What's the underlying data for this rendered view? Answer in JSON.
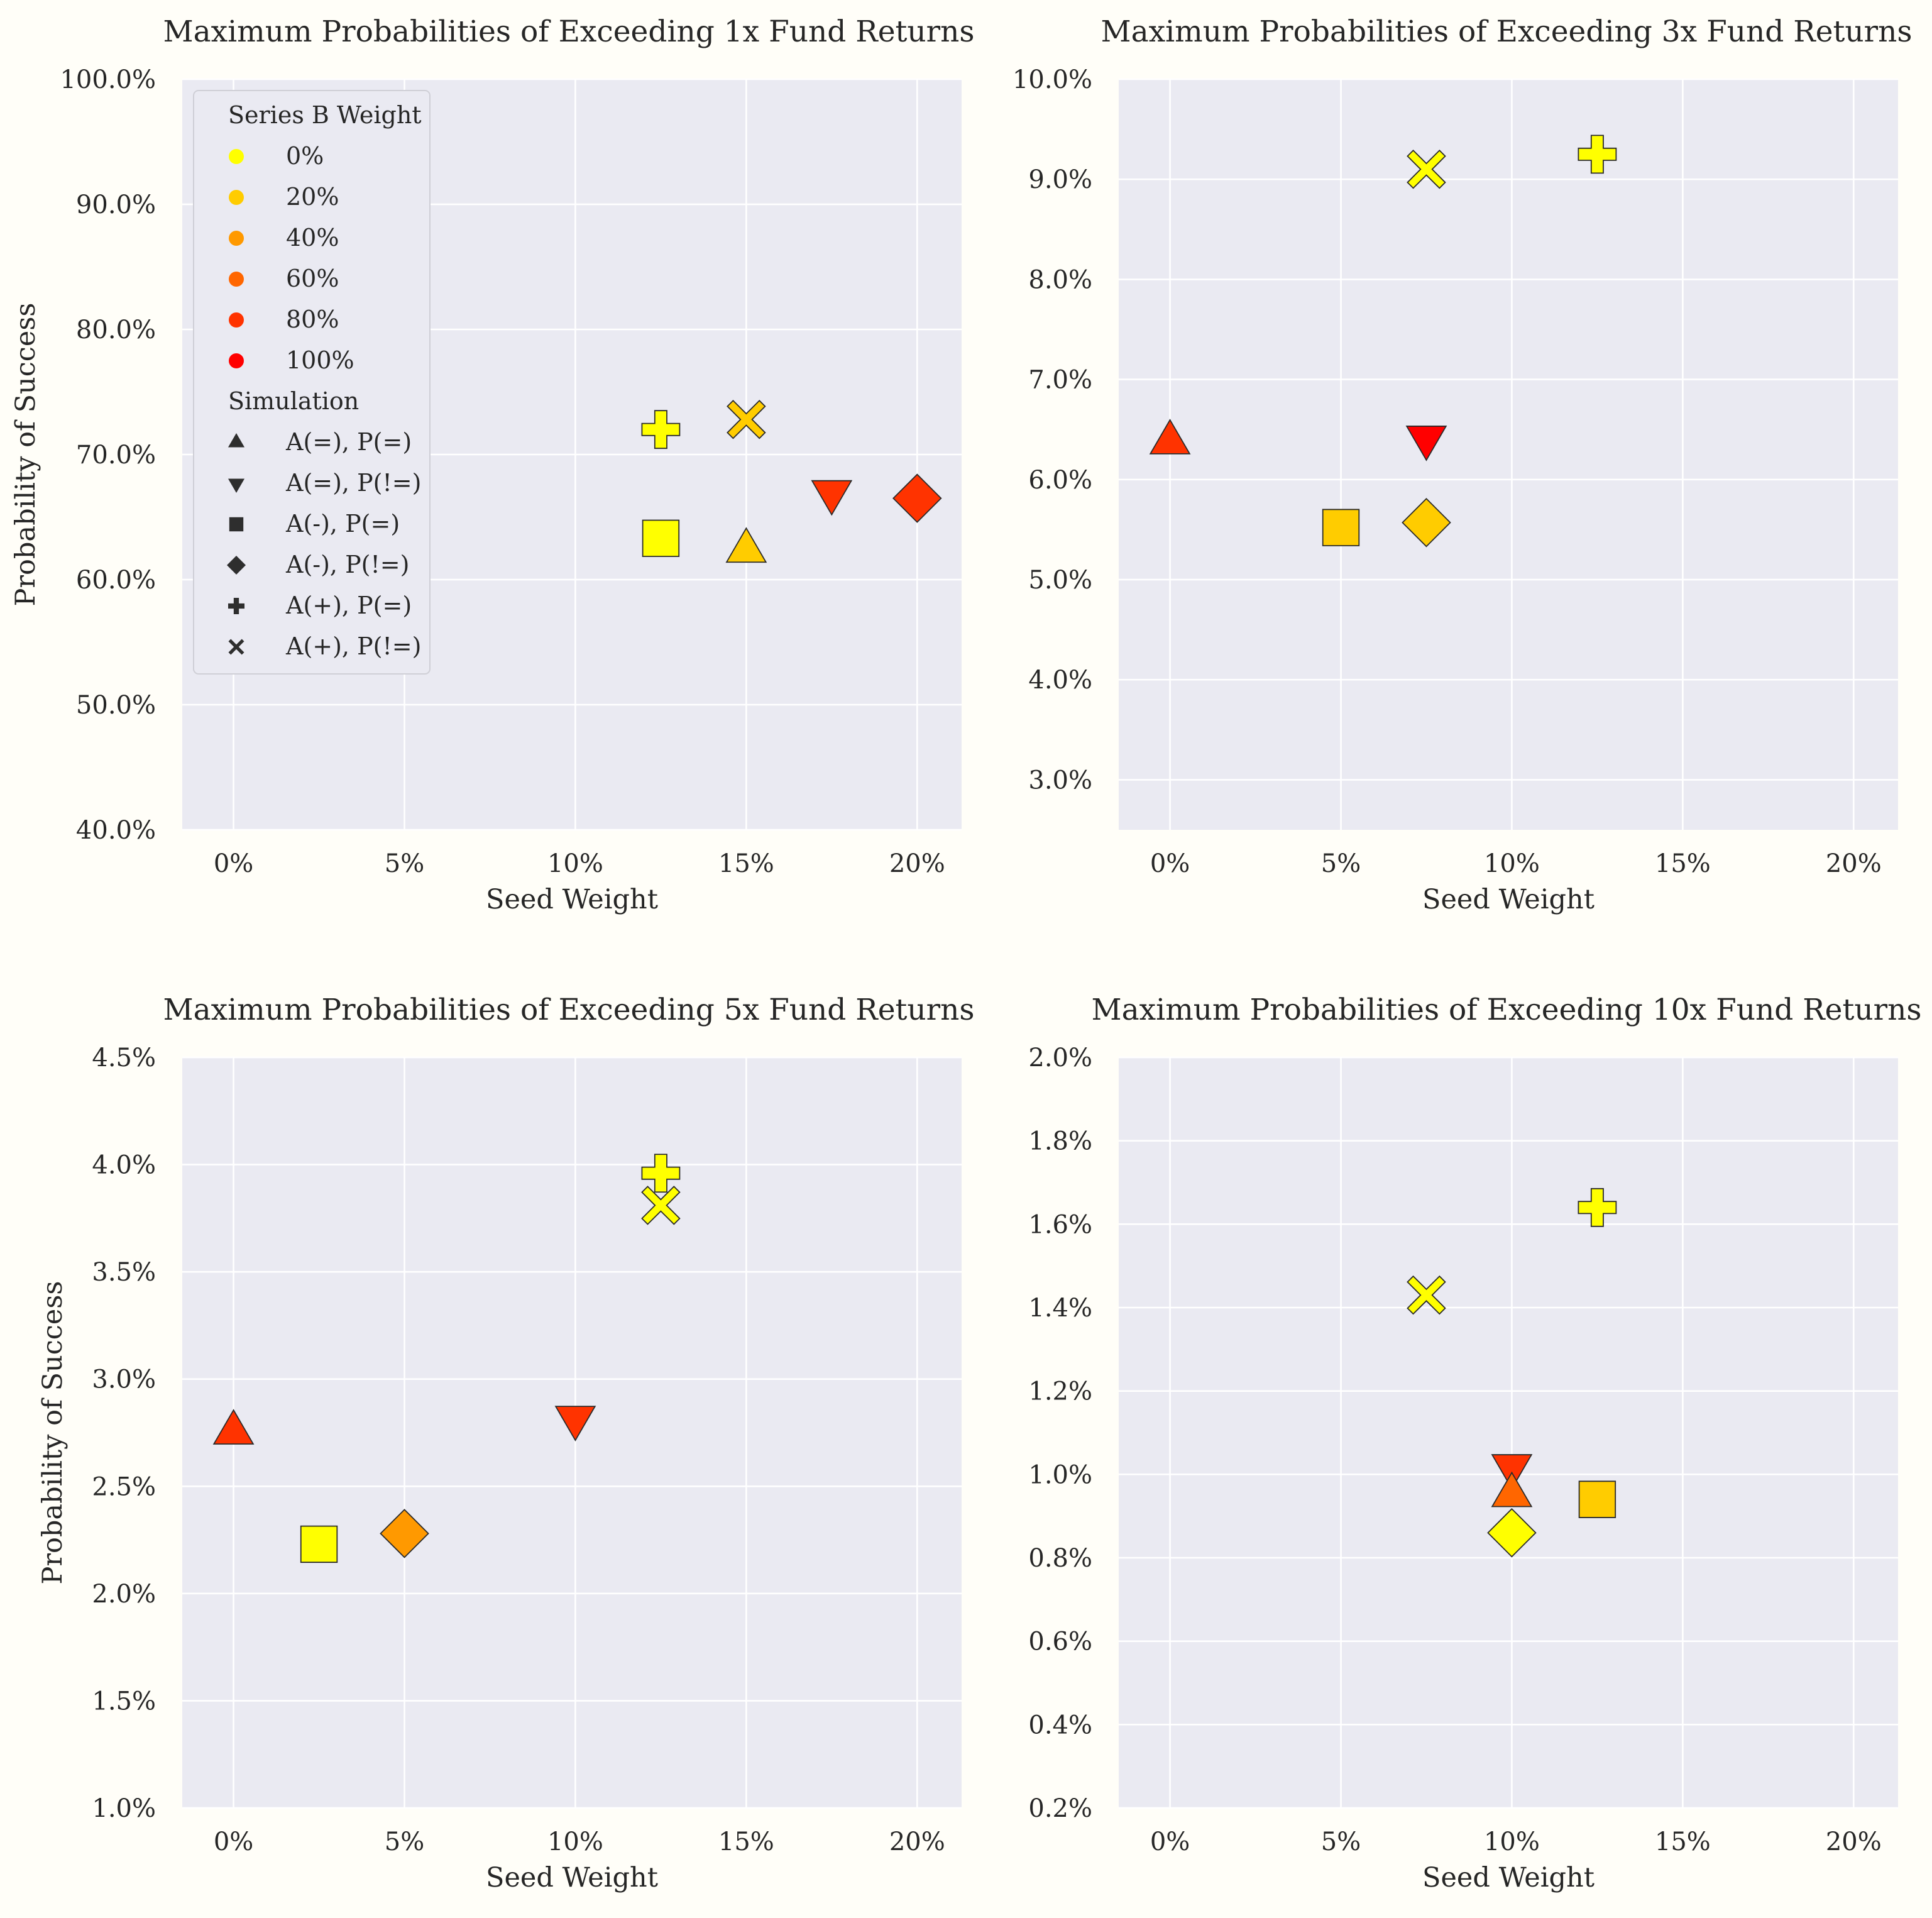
{
  "legend": {
    "weight_title": "Series B Weight",
    "weights": [
      {
        "label": "0%",
        "color": "#ffff00"
      },
      {
        "label": "20%",
        "color": "#ffcc00"
      },
      {
        "label": "40%",
        "color": "#ff9900"
      },
      {
        "label": "60%",
        "color": "#ff6600"
      },
      {
        "label": "80%",
        "color": "#ff3300"
      },
      {
        "label": "100%",
        "color": "#ff0000"
      }
    ],
    "sim_title": "Simulation",
    "sims": [
      {
        "label": "A(=), P(=)",
        "marker": "triangle-up"
      },
      {
        "label": "A(=), P(!=)",
        "marker": "triangle-down"
      },
      {
        "label": "A(-), P(=)",
        "marker": "square"
      },
      {
        "label": "A(-), P(!=)",
        "marker": "diamond"
      },
      {
        "label": "A(+), P(=)",
        "marker": "plus"
      },
      {
        "label": "A(+), P(!=)",
        "marker": "x"
      }
    ]
  },
  "chart_data": [
    {
      "type": "scatter",
      "title": "Maximum Probabilities of Exceeding 1x Fund Returns",
      "xlabel": "Seed Weight",
      "ylabel": "Probability of Success",
      "xlim": [
        -1.5,
        21.3
      ],
      "ylim": [
        40,
        100
      ],
      "xticks": [
        0,
        5,
        10,
        15,
        20
      ],
      "xtick_labels": [
        "0%",
        "5%",
        "10%",
        "15%",
        "20%"
      ],
      "yticks": [
        40,
        50,
        60,
        70,
        80,
        90,
        100
      ],
      "ytick_labels": [
        "40.0%",
        "50.0%",
        "60.0%",
        "70.0%",
        "80.0%",
        "90.0%",
        "100.0%"
      ],
      "grid": true,
      "legend_position": "upper-left",
      "points": [
        {
          "sim": "A(+), P(=)",
          "seed_weight": 12.5,
          "probability": 72.0,
          "series_b_weight": "0%"
        },
        {
          "sim": "A(+), P(!=)",
          "seed_weight": 15,
          "probability": 72.8,
          "series_b_weight": "20%"
        },
        {
          "sim": "A(-), P(=)",
          "seed_weight": 12.5,
          "probability": 63.3,
          "series_b_weight": "0%"
        },
        {
          "sim": "A(=), P(=)",
          "seed_weight": 15,
          "probability": 62.3,
          "series_b_weight": "20%"
        },
        {
          "sim": "A(=), P(!=)",
          "seed_weight": 17.5,
          "probability": 67.0,
          "series_b_weight": "80%"
        },
        {
          "sim": "A(-), P(!=)",
          "seed_weight": 20,
          "probability": 66.5,
          "series_b_weight": "80%"
        }
      ]
    },
    {
      "type": "scatter",
      "title": "Maximum Probabilities of Exceeding 3x Fund Returns",
      "xlabel": "Seed Weight",
      "ylabel": "",
      "xlim": [
        -1.5,
        21.3
      ],
      "ylim": [
        2.5,
        10
      ],
      "xticks": [
        0,
        5,
        10,
        15,
        20
      ],
      "xtick_labels": [
        "0%",
        "5%",
        "10%",
        "15%",
        "20%"
      ],
      "yticks": [
        3,
        4,
        5,
        6,
        7,
        8,
        9,
        10
      ],
      "ytick_labels": [
        "3.0%",
        "4.0%",
        "5.0%",
        "6.0%",
        "7.0%",
        "8.0%",
        "9.0%",
        "10.0%"
      ],
      "grid": true,
      "points": [
        {
          "sim": "A(+), P(=)",
          "seed_weight": 12.5,
          "probability": 9.25,
          "series_b_weight": "0%"
        },
        {
          "sim": "A(+), P(!=)",
          "seed_weight": 7.5,
          "probability": 9.1,
          "series_b_weight": "0%"
        },
        {
          "sim": "A(=), P(=)",
          "seed_weight": 0,
          "probability": 6.37,
          "series_b_weight": "80%"
        },
        {
          "sim": "A(=), P(!=)",
          "seed_weight": 7.5,
          "probability": 6.42,
          "series_b_weight": "100%"
        },
        {
          "sim": "A(-), P(=)",
          "seed_weight": 5,
          "probability": 5.52,
          "series_b_weight": "20%"
        },
        {
          "sim": "A(-), P(!=)",
          "seed_weight": 7.5,
          "probability": 5.57,
          "series_b_weight": "20%"
        }
      ]
    },
    {
      "type": "scatter",
      "title": "Maximum Probabilities of Exceeding 5x Fund Returns",
      "xlabel": "Seed Weight",
      "ylabel": "Probability of Success",
      "xlim": [
        -1.5,
        21.3
      ],
      "ylim": [
        1,
        4.5
      ],
      "xticks": [
        0,
        5,
        10,
        15,
        20
      ],
      "xtick_labels": [
        "0%",
        "5%",
        "10%",
        "15%",
        "20%"
      ],
      "yticks": [
        1,
        1.5,
        2,
        2.5,
        3,
        3.5,
        4,
        4.5
      ],
      "ytick_labels": [
        "1.0%",
        "1.5%",
        "2.0%",
        "2.5%",
        "3.0%",
        "3.5%",
        "4.0%",
        "4.5%"
      ],
      "grid": true,
      "points": [
        {
          "sim": "A(+), P(=)",
          "seed_weight": 12.5,
          "probability": 3.96,
          "series_b_weight": "0%"
        },
        {
          "sim": "A(+), P(!=)",
          "seed_weight": 12.5,
          "probability": 3.81,
          "series_b_weight": "0%"
        },
        {
          "sim": "A(=), P(=)",
          "seed_weight": 0,
          "probability": 2.75,
          "series_b_weight": "80%"
        },
        {
          "sim": "A(=), P(!=)",
          "seed_weight": 10,
          "probability": 2.82,
          "series_b_weight": "80%"
        },
        {
          "sim": "A(-), P(=)",
          "seed_weight": 2.5,
          "probability": 2.23,
          "series_b_weight": "0%"
        },
        {
          "sim": "A(-), P(!=)",
          "seed_weight": 5,
          "probability": 2.28,
          "series_b_weight": "40%"
        }
      ]
    },
    {
      "type": "scatter",
      "title": "Maximum Probabilities of Exceeding 10x Fund Returns",
      "xlabel": "Seed Weight",
      "ylabel": "",
      "xlim": [
        -1.5,
        21.3
      ],
      "ylim": [
        0.2,
        2.0
      ],
      "xticks": [
        0,
        5,
        10,
        15,
        20
      ],
      "xtick_labels": [
        "0%",
        "5%",
        "10%",
        "15%",
        "20%"
      ],
      "yticks": [
        0.2,
        0.4,
        0.6,
        0.8,
        1.0,
        1.2,
        1.4,
        1.6,
        1.8,
        2.0
      ],
      "ytick_labels": [
        "0.2%",
        "0.4%",
        "0.6%",
        "0.8%",
        "1.0%",
        "1.2%",
        "1.4%",
        "1.6%",
        "1.8%",
        "2.0%"
      ],
      "grid": true,
      "points": [
        {
          "sim": "A(+), P(=)",
          "seed_weight": 12.5,
          "probability": 1.64,
          "series_b_weight": "0%"
        },
        {
          "sim": "A(+), P(!=)",
          "seed_weight": 7.5,
          "probability": 1.43,
          "series_b_weight": "0%"
        },
        {
          "sim": "A(=), P(!=)",
          "seed_weight": 10,
          "probability": 1.02,
          "series_b_weight": "80%"
        },
        {
          "sim": "A(=), P(=)",
          "seed_weight": 10,
          "probability": 0.95,
          "series_b_weight": "60%"
        },
        {
          "sim": "A(-), P(=)",
          "seed_weight": 12.5,
          "probability": 0.94,
          "series_b_weight": "20%"
        },
        {
          "sim": "A(-), P(!=)",
          "seed_weight": 10,
          "probability": 0.86,
          "series_b_weight": "0%"
        }
      ]
    }
  ]
}
